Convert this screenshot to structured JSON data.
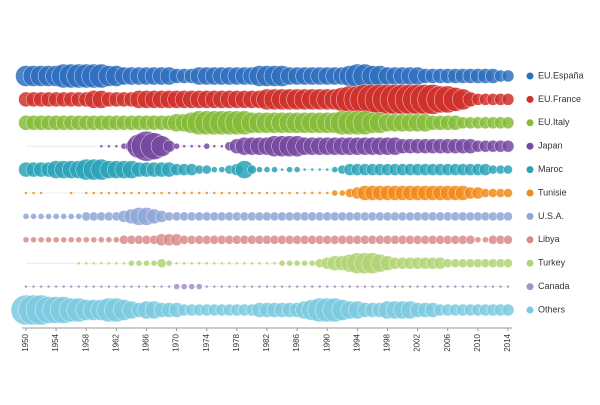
{
  "chart_data": {
    "type": "bubble-rows",
    "x": [
      1950,
      1951,
      1952,
      1953,
      1954,
      1955,
      1956,
      1957,
      1958,
      1959,
      1960,
      1961,
      1962,
      1963,
      1964,
      1965,
      1966,
      1967,
      1968,
      1969,
      1970,
      1971,
      1972,
      1973,
      1974,
      1975,
      1976,
      1977,
      1978,
      1979,
      1980,
      1981,
      1982,
      1983,
      1984,
      1985,
      1986,
      1987,
      1988,
      1989,
      1990,
      1991,
      1992,
      1993,
      1994,
      1995,
      1996,
      1997,
      1998,
      1999,
      2000,
      2001,
      2002,
      2003,
      2004,
      2005,
      2006,
      2007,
      2008,
      2009,
      2010,
      2011,
      2012,
      2013,
      2014
    ],
    "xlim": [
      1950,
      2014
    ],
    "xticks": [
      1950,
      1954,
      1958,
      1962,
      1966,
      1970,
      1974,
      1978,
      1982,
      1986,
      1990,
      1994,
      1998,
      2002,
      2006,
      2010,
      2014
    ],
    "legend": "right",
    "series": [
      {
        "name": "EU.España",
        "color": "#2f6fc0",
        "values": [
          7,
          7,
          7,
          7,
          7,
          8,
          8,
          8,
          8,
          8,
          8,
          7,
          7,
          6,
          6,
          6,
          6,
          6,
          6,
          6,
          5,
          5,
          5,
          6,
          6,
          6,
          6,
          6,
          6,
          6,
          6,
          7,
          7,
          7,
          7,
          6,
          6,
          6,
          6,
          6,
          6,
          6,
          6,
          7,
          8,
          8,
          7,
          7,
          6,
          6,
          6,
          6,
          6,
          5,
          5,
          5,
          5,
          5,
          5,
          5,
          5,
          5,
          5,
          4,
          4
        ]
      },
      {
        "name": "EU.France",
        "color": "#d0302c",
        "values": [
          5,
          5,
          5,
          5,
          5,
          5,
          5,
          5,
          5,
          6,
          6,
          5,
          5,
          5,
          5,
          6,
          6,
          6,
          6,
          6,
          6,
          6,
          6,
          6,
          6,
          6,
          6,
          6,
          6,
          6,
          6,
          6,
          7,
          7,
          7,
          7,
          7,
          7,
          7,
          7,
          7,
          7,
          8,
          9,
          9,
          10,
          10,
          10,
          10,
          10,
          10,
          10,
          10,
          10,
          10,
          9,
          9,
          8,
          7,
          5,
          4,
          4,
          4,
          4,
          4
        ]
      },
      {
        "name": "EU.Italy",
        "color": "#86bc3a",
        "values": [
          5,
          5,
          5,
          5,
          5,
          5,
          5,
          5,
          5,
          5,
          5,
          5,
          5,
          5,
          5,
          5,
          5,
          5,
          5,
          5,
          6,
          6,
          7,
          8,
          8,
          8,
          8,
          8,
          8,
          8,
          7,
          7,
          7,
          7,
          7,
          7,
          7,
          7,
          7,
          7,
          7,
          7,
          8,
          8,
          8,
          8,
          7,
          7,
          6,
          6,
          6,
          6,
          6,
          6,
          5,
          5,
          5,
          5,
          4,
          4,
          4,
          4,
          4,
          4,
          4
        ]
      },
      {
        "name": "Japan",
        "color": "#7649a0",
        "values": [
          0,
          0,
          0,
          0,
          0,
          0,
          0,
          0,
          0,
          0,
          1,
          1,
          1,
          2,
          4,
          8,
          10,
          9,
          7,
          4,
          2,
          1,
          1,
          1,
          2,
          1,
          1,
          3,
          5,
          6,
          6,
          6,
          6,
          7,
          7,
          7,
          7,
          6,
          6,
          6,
          6,
          6,
          6,
          6,
          6,
          6,
          6,
          6,
          6,
          6,
          5,
          5,
          5,
          5,
          5,
          5,
          5,
          5,
          5,
          5,
          4,
          4,
          4,
          4,
          4
        ]
      },
      {
        "name": "Maroc",
        "color": "#2aa3b8",
        "values": [
          5,
          5,
          5,
          5,
          6,
          6,
          6,
          6,
          7,
          7,
          7,
          6,
          6,
          6,
          6,
          5,
          5,
          5,
          5,
          5,
          4,
          4,
          4,
          3,
          3,
          2,
          2,
          3,
          4,
          6,
          3,
          2,
          2,
          2,
          1,
          2,
          2,
          1,
          1,
          1,
          1,
          2,
          3,
          4,
          4,
          4,
          4,
          4,
          4,
          4,
          4,
          4,
          4,
          4,
          4,
          4,
          4,
          4,
          4,
          4,
          4,
          4,
          3,
          3,
          3
        ]
      },
      {
        "name": "Tunisie",
        "color": "#f28a1a",
        "values": [
          1,
          1,
          1,
          0,
          0,
          0,
          1,
          0,
          1,
          1,
          1,
          1,
          1,
          1,
          1,
          1,
          1,
          1,
          1,
          1,
          1,
          1,
          1,
          1,
          1,
          1,
          1,
          1,
          1,
          1,
          1,
          1,
          1,
          1,
          1,
          1,
          1,
          1,
          1,
          1,
          1,
          2,
          2,
          3,
          4,
          5,
          5,
          5,
          5,
          5,
          5,
          5,
          5,
          5,
          5,
          5,
          5,
          5,
          5,
          4,
          4,
          3,
          3,
          3,
          3
        ]
      },
      {
        "name": "U.S.A.",
        "color": "#8ea6d8",
        "values": [
          2,
          2,
          2,
          2,
          2,
          2,
          2,
          2,
          3,
          3,
          3,
          3,
          3,
          4,
          5,
          6,
          6,
          5,
          4,
          3,
          3,
          3,
          3,
          3,
          3,
          3,
          3,
          3,
          3,
          3,
          3,
          3,
          3,
          3,
          3,
          3,
          3,
          3,
          3,
          3,
          3,
          3,
          3,
          3,
          3,
          3,
          3,
          3,
          3,
          3,
          3,
          3,
          3,
          3,
          3,
          3,
          3,
          3,
          3,
          3,
          3,
          3,
          3,
          3,
          3
        ]
      },
      {
        "name": "Libya",
        "color": "#d98b8b",
        "values": [
          2,
          2,
          2,
          2,
          2,
          2,
          2,
          2,
          2,
          2,
          2,
          2,
          2,
          3,
          3,
          3,
          3,
          3,
          4,
          4,
          4,
          3,
          3,
          3,
          3,
          3,
          3,
          3,
          3,
          3,
          3,
          3,
          3,
          3,
          3,
          3,
          3,
          3,
          3,
          3,
          3,
          3,
          3,
          3,
          3,
          3,
          3,
          3,
          3,
          3,
          3,
          3,
          3,
          3,
          3,
          3,
          3,
          3,
          3,
          3,
          2,
          2,
          3,
          3,
          3
        ]
      },
      {
        "name": "Turkey",
        "color": "#b2d374",
        "values": [
          0,
          0,
          0,
          0,
          0,
          0,
          0,
          1,
          1,
          1,
          1,
          1,
          1,
          1,
          2,
          2,
          2,
          2,
          3,
          2,
          1,
          1,
          1,
          1,
          1,
          1,
          1,
          1,
          1,
          1,
          1,
          1,
          1,
          1,
          2,
          2,
          2,
          2,
          2,
          3,
          4,
          5,
          5,
          6,
          7,
          7,
          7,
          6,
          5,
          4,
          4,
          4,
          4,
          4,
          4,
          4,
          3,
          3,
          3,
          3,
          3,
          3,
          3,
          3,
          3
        ]
      },
      {
        "name": "Canada",
        "color": "#a690c8",
        "values": [
          1,
          1,
          1,
          1,
          1,
          1,
          1,
          1,
          1,
          1,
          1,
          1,
          1,
          1,
          1,
          1,
          1,
          1,
          1,
          1,
          2,
          2,
          2,
          2,
          1,
          1,
          1,
          1,
          1,
          1,
          1,
          1,
          1,
          1,
          1,
          1,
          1,
          1,
          1,
          1,
          1,
          1,
          1,
          1,
          1,
          1,
          1,
          1,
          1,
          1,
          1,
          1,
          1,
          1,
          1,
          1,
          1,
          1,
          1,
          1,
          1,
          1,
          1,
          1,
          1
        ]
      },
      {
        "name": "Others",
        "color": "#7ccae0",
        "values": [
          10,
          10,
          10,
          9,
          9,
          9,
          8,
          8,
          7,
          7,
          7,
          8,
          8,
          7,
          6,
          5,
          6,
          6,
          5,
          5,
          5,
          4,
          4,
          4,
          4,
          4,
          4,
          4,
          4,
          4,
          4,
          5,
          5,
          5,
          5,
          5,
          5,
          6,
          7,
          8,
          8,
          8,
          7,
          6,
          6,
          5,
          5,
          5,
          6,
          6,
          6,
          6,
          5,
          5,
          5,
          4,
          4,
          4,
          4,
          4,
          4,
          4,
          4,
          4,
          4
        ]
      }
    ]
  }
}
